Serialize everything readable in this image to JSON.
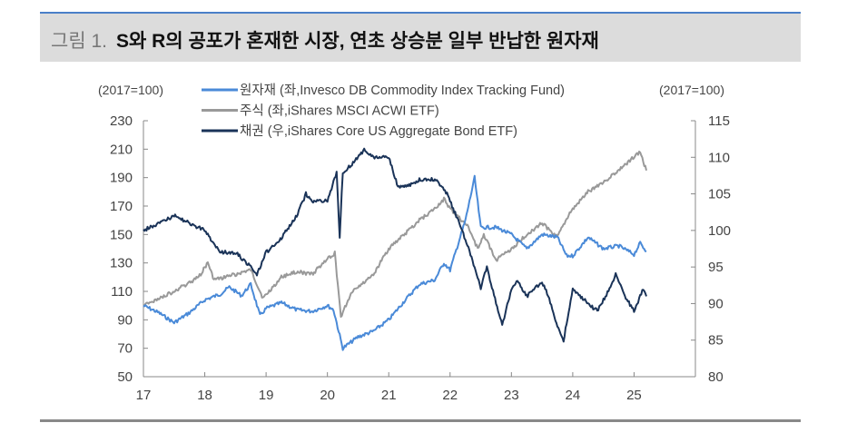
{
  "title": {
    "figure_label": "그림 1.",
    "text": "S와 R의 공포가 혼재한 시장, 연초 상승분 일부 반납한 원자재"
  },
  "chart_data": {
    "type": "line",
    "title": "S와 R의 공포가 혼재한 시장, 연초 상승분 일부 반납한 원자재",
    "left_unit": "(2017=100)",
    "right_unit": "(2017=100)",
    "x_ticks": [
      "17",
      "18",
      "19",
      "20",
      "21",
      "22",
      "23",
      "24",
      "25"
    ],
    "x_range": [
      2017,
      2026
    ],
    "left_ylim": [
      50,
      230
    ],
    "left_ticks": [
      "50",
      "70",
      "90",
      "110",
      "130",
      "150",
      "170",
      "190",
      "210",
      "230"
    ],
    "right_ylim": [
      80,
      115
    ],
    "right_ticks": [
      "80",
      "85",
      "90",
      "95",
      "100",
      "105",
      "110",
      "115"
    ],
    "legend_position": "top-left",
    "series": [
      {
        "name": "원자재 (좌,Invesco DB Commodity Index Tracking Fund)",
        "axis": "left",
        "color": "#4a8ad8",
        "x": [
          2017.0,
          2017.25,
          2017.5,
          2017.75,
          2018.0,
          2018.25,
          2018.4,
          2018.6,
          2018.75,
          2018.9,
          2019.0,
          2019.25,
          2019.5,
          2019.75,
          2020.0,
          2020.1,
          2020.25,
          2020.5,
          2020.75,
          2021.0,
          2021.25,
          2021.5,
          2021.75,
          2021.9,
          2022.0,
          2022.25,
          2022.4,
          2022.5,
          2022.75,
          2023.0,
          2023.25,
          2023.5,
          2023.75,
          2023.9,
          2024.0,
          2024.25,
          2024.5,
          2024.75,
          2025.0,
          2025.1,
          2025.2
        ],
        "y": [
          100,
          95,
          88,
          95,
          104,
          108,
          113,
          107,
          115,
          93,
          98,
          102,
          97,
          96,
          100,
          97,
          70,
          78,
          82,
          90,
          103,
          115,
          118,
          130,
          125,
          160,
          190,
          155,
          155,
          150,
          140,
          150,
          148,
          135,
          135,
          148,
          140,
          142,
          136,
          144,
          138
        ]
      },
      {
        "name": "주식 (좌,iShares MSCI ACWI ETF)",
        "axis": "left",
        "color": "#999999",
        "x": [
          2017.0,
          2017.5,
          2017.9,
          2018.05,
          2018.15,
          2018.5,
          2018.75,
          2018.95,
          2019.25,
          2019.5,
          2019.75,
          2020.0,
          2020.12,
          2020.22,
          2020.4,
          2020.75,
          2021.0,
          2021.25,
          2021.5,
          2021.75,
          2021.9,
          2022.0,
          2022.3,
          2022.45,
          2022.55,
          2022.75,
          2023.0,
          2023.25,
          2023.5,
          2023.75,
          2023.95,
          2024.25,
          2024.5,
          2024.75,
          2024.95,
          2025.1,
          2025.2
        ],
        "y": [
          100,
          110,
          120,
          130,
          118,
          122,
          125,
          105,
          120,
          124,
          122,
          133,
          137,
          92,
          110,
          122,
          140,
          150,
          160,
          168,
          175,
          168,
          155,
          140,
          150,
          132,
          140,
          150,
          158,
          148,
          165,
          180,
          187,
          195,
          203,
          208,
          195
        ]
      },
      {
        "name": "채권 (우,iShares Core US Aggregate Bond ETF)",
        "axis": "right",
        "color": "#1a3358",
        "x": [
          2017.0,
          2017.25,
          2017.5,
          2017.75,
          2018.0,
          2018.25,
          2018.5,
          2018.75,
          2018.85,
          2019.0,
          2019.25,
          2019.5,
          2019.65,
          2019.75,
          2020.0,
          2020.15,
          2020.2,
          2020.25,
          2020.4,
          2020.6,
          2020.75,
          2021.0,
          2021.15,
          2021.3,
          2021.5,
          2021.75,
          2021.95,
          2022.2,
          2022.4,
          2022.5,
          2022.6,
          2022.75,
          2022.85,
          2023.0,
          2023.1,
          2023.25,
          2023.5,
          2023.6,
          2023.75,
          2023.85,
          2024.0,
          2024.25,
          2024.4,
          2024.6,
          2024.7,
          2024.85,
          2025.0,
          2025.15,
          2025.2
        ],
        "y": [
          100,
          101,
          102,
          101,
          100,
          97,
          97,
          95,
          94,
          97,
          99,
          102,
          105,
          104,
          104,
          108,
          99,
          108,
          109,
          111,
          110,
          110,
          106,
          106,
          107,
          107,
          105,
          100,
          95,
          92,
          95,
          90,
          87,
          92,
          93,
          91,
          93,
          91,
          87,
          85,
          92,
          90,
          89,
          92,
          94,
          91,
          89,
          92,
          91
        ]
      }
    ]
  }
}
